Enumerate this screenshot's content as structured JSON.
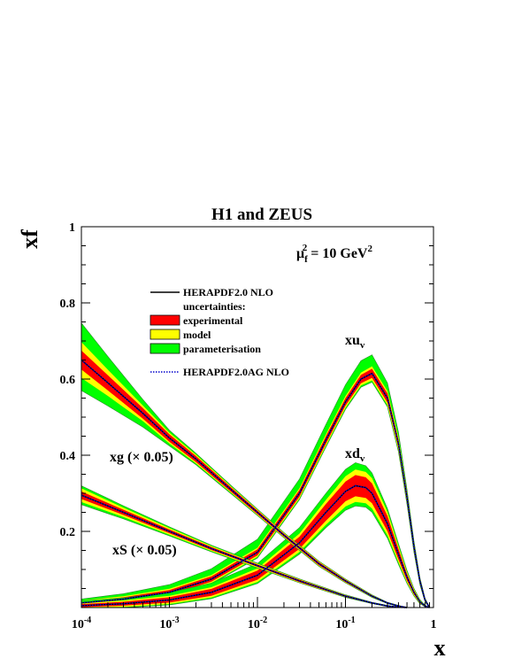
{
  "chart_data": {
    "type": "area",
    "title": "H1 and ZEUS",
    "xlabel": "x",
    "ylabel": "xf",
    "x_scale": "log",
    "xlim": [
      0.0001,
      1
    ],
    "ylim": [
      0,
      1
    ],
    "x_ticks": [
      {
        "value": 0.0001,
        "base": "10",
        "exp": "-4"
      },
      {
        "value": 0.001,
        "base": "10",
        "exp": "-3"
      },
      {
        "value": 0.01,
        "base": "10",
        "exp": "-2"
      },
      {
        "value": 0.1,
        "base": "10",
        "exp": "-1"
      },
      {
        "value": 1,
        "base": "1",
        "exp": ""
      }
    ],
    "y_ticks": [
      "0.2",
      "0.4",
      "0.6",
      "0.8",
      "1"
    ],
    "y_tick_values": [
      0.2,
      0.4,
      0.6,
      0.8,
      1
    ],
    "scale_label": {
      "prefix": "μ",
      "sub": "f",
      "sup": "2",
      "mid": " = 10 GeV",
      "sup2": "2"
    },
    "legend": {
      "position": "top-left",
      "items": [
        {
          "label": "HERAPDF2.0 NLO",
          "kind": "line",
          "color": "#000000"
        },
        {
          "label": "uncertainties:",
          "kind": "text"
        },
        {
          "label": "experimental",
          "kind": "box",
          "color": "#ff0000"
        },
        {
          "label": "model",
          "kind": "box",
          "color": "#ffff00"
        },
        {
          "label": "parameterisation",
          "kind": "box",
          "color": "#00ff00"
        },
        {
          "label": "HERAPDF2.0AG NLO",
          "kind": "dotted",
          "color": "#0000cc"
        }
      ]
    },
    "colors": {
      "central": "#000000",
      "experimental": "#ff0000",
      "model": "#ffff00",
      "parameterisation": "#00ff00",
      "ag": "#0000cc"
    },
    "series": [
      {
        "name": "xu_v",
        "label_main": "xu",
        "label_sub": "v",
        "x": [
          0.0001,
          0.0003,
          0.001,
          0.003,
          0.01,
          0.03,
          0.06,
          0.1,
          0.15,
          0.2,
          0.3,
          0.4,
          0.5,
          0.6,
          0.7,
          0.8,
          0.9
        ],
        "central": [
          0.012,
          0.022,
          0.04,
          0.075,
          0.145,
          0.3,
          0.44,
          0.54,
          0.6,
          0.615,
          0.55,
          0.43,
          0.29,
          0.16,
          0.07,
          0.02,
          0.0
        ],
        "exp": [
          0.004,
          0.005,
          0.006,
          0.007,
          0.008,
          0.009,
          0.01,
          0.01,
          0.011,
          0.012,
          0.012,
          0.011,
          0.01,
          0.008,
          0.005,
          0.003,
          0.001
        ],
        "model": [
          0.005,
          0.006,
          0.007,
          0.008,
          0.009,
          0.01,
          0.011,
          0.012,
          0.013,
          0.014,
          0.014,
          0.013,
          0.011,
          0.009,
          0.006,
          0.003,
          0.001
        ],
        "param_hi": [
          0.008,
          0.012,
          0.018,
          0.025,
          0.032,
          0.035,
          0.038,
          0.042,
          0.045,
          0.045,
          0.035,
          0.025,
          0.015,
          0.01,
          0.005,
          0.003,
          0.001
        ],
        "param_lo": [
          0.005,
          0.006,
          0.007,
          0.008,
          0.009,
          0.01,
          0.011,
          0.012,
          0.013,
          0.014,
          0.014,
          0.013,
          0.011,
          0.009,
          0.006,
          0.003,
          0.001
        ]
      },
      {
        "name": "xd_v",
        "label_main": "xd",
        "label_sub": "v",
        "x": [
          0.0001,
          0.0003,
          0.001,
          0.003,
          0.01,
          0.03,
          0.06,
          0.1,
          0.13,
          0.17,
          0.2,
          0.3,
          0.4,
          0.5,
          0.6,
          0.7,
          0.8,
          0.9
        ],
        "central": [
          0.005,
          0.01,
          0.02,
          0.04,
          0.085,
          0.17,
          0.25,
          0.305,
          0.32,
          0.315,
          0.3,
          0.22,
          0.14,
          0.08,
          0.04,
          0.015,
          0.004,
          0.0
        ],
        "exp": [
          0.004,
          0.005,
          0.007,
          0.009,
          0.012,
          0.016,
          0.022,
          0.026,
          0.028,
          0.027,
          0.026,
          0.02,
          0.014,
          0.009,
          0.005,
          0.003,
          0.001,
          0.0
        ],
        "model": [
          0.006,
          0.007,
          0.008,
          0.01,
          0.013,
          0.018,
          0.024,
          0.03,
          0.032,
          0.031,
          0.03,
          0.023,
          0.016,
          0.01,
          0.006,
          0.003,
          0.001,
          0.0
        ],
        "param_hi": [
          0.01,
          0.013,
          0.016,
          0.02,
          0.025,
          0.032,
          0.038,
          0.042,
          0.043,
          0.04,
          0.036,
          0.025,
          0.018,
          0.012,
          0.007,
          0.004,
          0.002,
          0.0
        ],
        "param_lo": [
          0.006,
          0.007,
          0.008,
          0.01,
          0.013,
          0.018,
          0.024,
          0.03,
          0.032,
          0.031,
          0.03,
          0.023,
          0.016,
          0.01,
          0.006,
          0.003,
          0.001,
          0.0
        ]
      },
      {
        "name": "xg (× 0.05)",
        "label_main": "xg (× 0.05)",
        "label_sub": "",
        "x": [
          0.0001,
          0.0002,
          0.0005,
          0.001,
          0.002,
          0.005,
          0.01,
          0.02,
          0.05,
          0.1,
          0.2,
          0.3,
          0.4,
          0.5
        ],
        "central": [
          0.65,
          0.59,
          0.51,
          0.445,
          0.39,
          0.31,
          0.25,
          0.19,
          0.115,
          0.07,
          0.03,
          0.012,
          0.004,
          0.0
        ],
        "exp": [
          0.025,
          0.02,
          0.014,
          0.01,
          0.008,
          0.006,
          0.005,
          0.004,
          0.004,
          0.003,
          0.002,
          0.001,
          0.001,
          0.0
        ],
        "model": [
          0.04,
          0.028,
          0.015,
          0.01,
          0.008,
          0.006,
          0.005,
          0.004,
          0.004,
          0.003,
          0.002,
          0.001,
          0.001,
          0.0
        ],
        "param_hi": [
          0.085,
          0.06,
          0.03,
          0.015,
          0.01,
          0.007,
          0.005,
          0.004,
          0.004,
          0.003,
          0.002,
          0.001,
          0.001,
          0.0
        ],
        "param_lo": [
          0.065,
          0.05,
          0.03,
          0.015,
          0.01,
          0.007,
          0.005,
          0.004,
          0.004,
          0.003,
          0.002,
          0.001,
          0.001,
          0.0
        ]
      },
      {
        "name": "xS (× 0.05)",
        "label_main": "xS (× 0.05)",
        "label_sub": "",
        "x": [
          0.0001,
          0.0003,
          0.001,
          0.003,
          0.01,
          0.03,
          0.1,
          0.2,
          0.3,
          0.4,
          0.5
        ],
        "central": [
          0.295,
          0.25,
          0.2,
          0.155,
          0.11,
          0.07,
          0.03,
          0.012,
          0.004,
          0.001,
          0.0
        ],
        "exp": [
          0.01,
          0.007,
          0.005,
          0.004,
          0.003,
          0.003,
          0.002,
          0.001,
          0.001,
          0.0,
          0.0
        ],
        "model": [
          0.015,
          0.01,
          0.007,
          0.005,
          0.004,
          0.003,
          0.002,
          0.001,
          0.001,
          0.0,
          0.0
        ],
        "param_hi": [
          0.017,
          0.012,
          0.008,
          0.006,
          0.004,
          0.003,
          0.002,
          0.001,
          0.001,
          0.0,
          0.0
        ],
        "param_lo": [
          0.017,
          0.012,
          0.008,
          0.006,
          0.004,
          0.003,
          0.002,
          0.001,
          0.001,
          0.0,
          0.0
        ]
      }
    ]
  }
}
